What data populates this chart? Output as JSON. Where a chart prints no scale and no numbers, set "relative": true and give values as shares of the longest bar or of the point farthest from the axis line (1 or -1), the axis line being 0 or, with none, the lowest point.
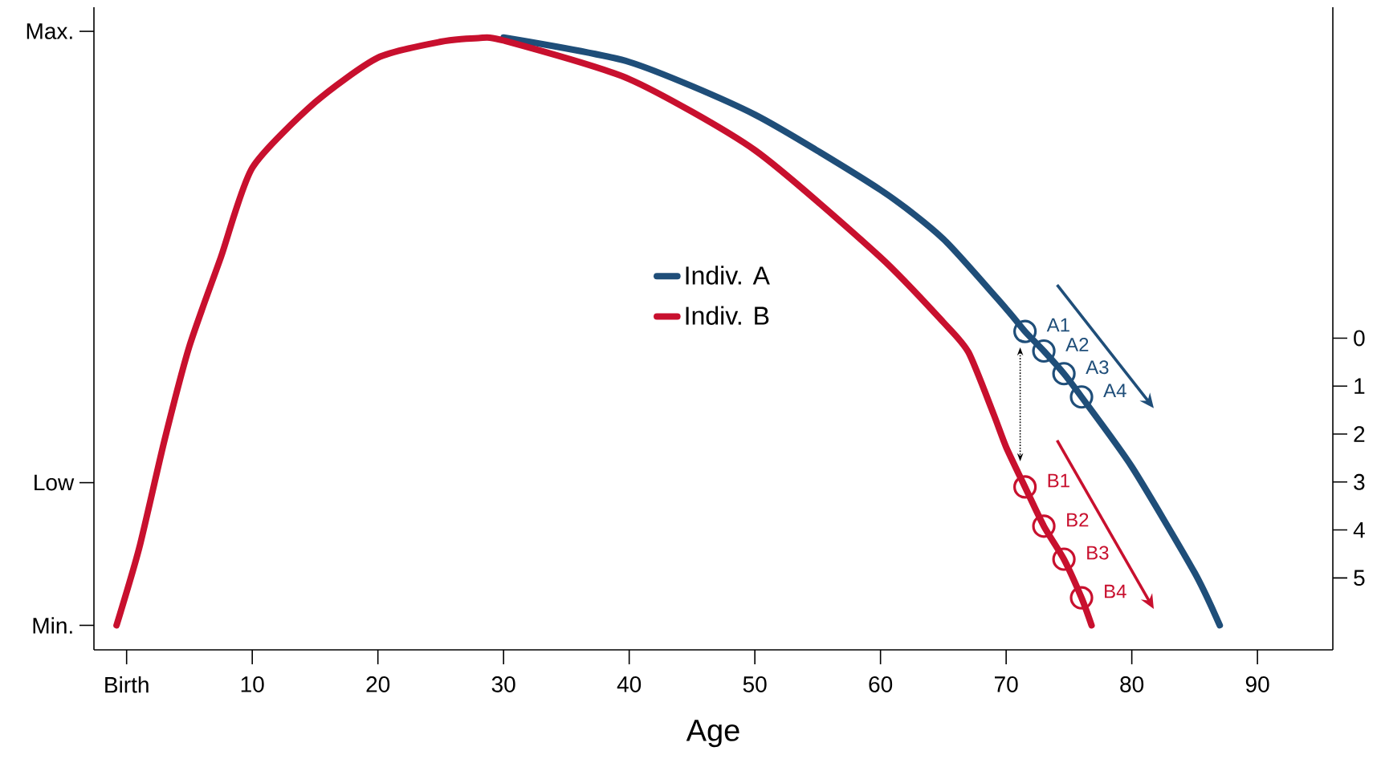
{
  "chart_data": {
    "type": "line",
    "xlabel": "Age",
    "relative": true,
    "xlim": [
      -2.6,
      96
    ],
    "y2lim": [
      6.5,
      -6.9
    ],
    "xticks": [
      {
        "value": 0,
        "label": "Birth"
      },
      10,
      20,
      30,
      40,
      50,
      60,
      70,
      80,
      90
    ],
    "y2ticks": [
      0,
      1,
      2,
      3,
      4,
      5
    ],
    "legend": "center",
    "grid": false,
    "ref_lines": [
      {
        "axis": "y",
        "value": 0.04,
        "label": "Min."
      },
      {
        "axis": "y",
        "value": 0.273,
        "label": "Low"
      },
      {
        "axis": "y",
        "value": 1.01,
        "label": "Max."
      }
    ],
    "series": [
      {
        "name": "Indiv. A",
        "color": "#1f4e79",
        "x": [
          30,
          40,
          50,
          60,
          65,
          70,
          71.5,
          73,
          74.6,
          76,
          80,
          85,
          87
        ],
        "values": [
          1.0,
          0.96,
          0.874,
          0.751,
          0.671,
          0.557,
          0.52,
          0.488,
          0.451,
          0.413,
          0.299,
          0.126,
          0.04
        ]
      },
      {
        "name": "Indiv. B",
        "color": "#c8102e",
        "x": [
          -0.8,
          1,
          3,
          5,
          7.5,
          10,
          15,
          20,
          25,
          28,
          30,
          40,
          50,
          60,
          65,
          67,
          69,
          70,
          71.5,
          73,
          74.6,
          76,
          76.8
        ],
        "values": [
          0.04,
          0.166,
          0.341,
          0.496,
          0.641,
          0.787,
          0.894,
          0.967,
          0.993,
          0.999,
          0.995,
          0.932,
          0.816,
          0.641,
          0.535,
          0.486,
          0.385,
          0.331,
          0.266,
          0.202,
          0.148,
          0.085,
          0.04
        ]
      },
      {
        "type": "scatter",
        "marker": "circle",
        "color": "#1f4e79",
        "x": [
          71.5,
          73,
          74.6,
          76
        ],
        "values": [
          0.52,
          0.488,
          0.451,
          0.413
        ]
      },
      {
        "type": "scatter",
        "marker": "circle",
        "color": "#c8102e",
        "x": [
          71.5,
          73,
          74.6,
          76
        ],
        "values": [
          0.266,
          0.202,
          0.148,
          0.085
        ]
      }
    ],
    "annotations": [
      {
        "text": "A1",
        "x": 71.5,
        "y": 0.52
      },
      {
        "text": "A2",
        "x": 73,
        "y": 0.488
      },
      {
        "text": "A3",
        "x": 74.6,
        "y": 0.451
      },
      {
        "text": "A4",
        "x": 76,
        "y": 0.413
      },
      {
        "text": "B1",
        "x": 71.5,
        "y": 0.266
      },
      {
        "text": "B2",
        "x": 73,
        "y": 0.202
      },
      {
        "text": "B3",
        "x": 74.6,
        "y": 0.148
      },
      {
        "text": "B4",
        "x": 76,
        "y": 0.085
      }
    ]
  }
}
